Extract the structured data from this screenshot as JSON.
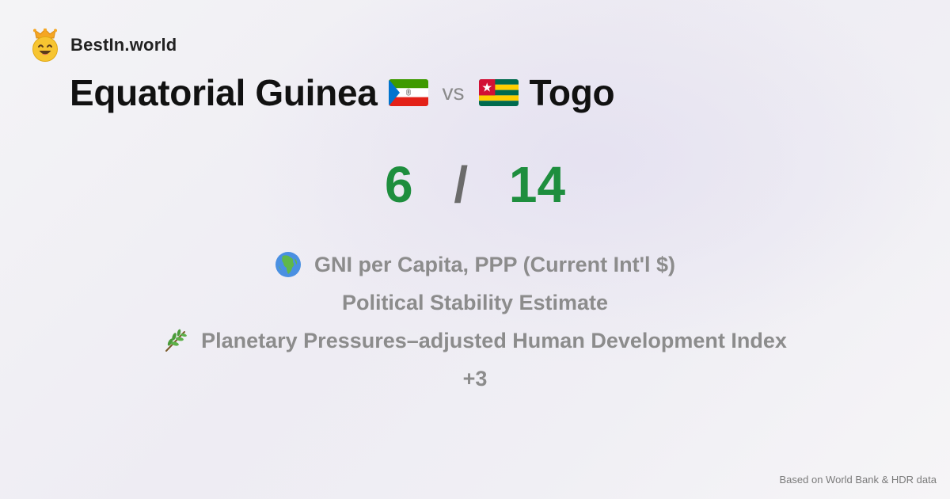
{
  "brand": {
    "name": "BestIn.world",
    "logo_icon": "crowned-smiley-icon"
  },
  "comparison": {
    "country_a": "Equatorial Guinea",
    "country_a_flag": "equatorial-guinea-flag-icon",
    "vs_label": "vs",
    "country_b": "Togo",
    "country_b_flag": "togo-flag-icon"
  },
  "score": {
    "a": "6",
    "separator": "/",
    "b": "14"
  },
  "metrics": [
    {
      "icon": "globe-africa-icon",
      "label": "GNI per Capita, PPP (Current Int'l $)"
    },
    {
      "icon": "",
      "label": "Political Stability Estimate"
    },
    {
      "icon": "herb-icon",
      "label": "Planetary Pressures–adjusted Human Development Index"
    },
    {
      "icon": "",
      "label": "+3"
    }
  ],
  "footer": {
    "source_note": "Based on World Bank & HDR data"
  },
  "colors": {
    "score": "#1e8e3e",
    "muted": "#8c8c8c",
    "brand_yellow": "#f7c531"
  }
}
